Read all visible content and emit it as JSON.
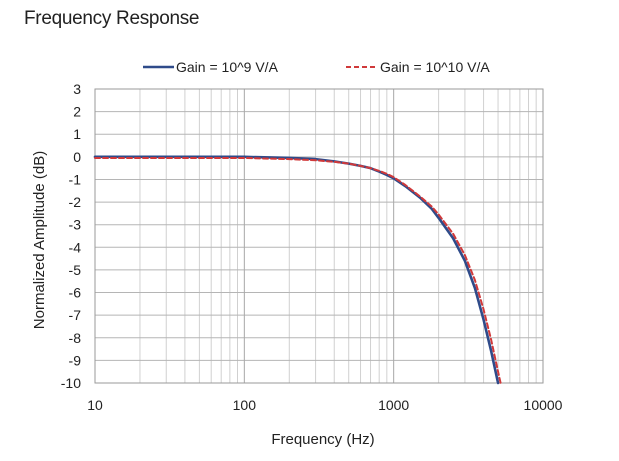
{
  "page": {
    "title": "Frequency Response"
  },
  "chart_data": {
    "type": "line",
    "title": "",
    "xlabel": "Frequency (Hz)",
    "ylabel": "Normalized Amplitude (dB)",
    "xscale": "log",
    "xlim": [
      10,
      10000
    ],
    "ylim": [
      -10,
      3
    ],
    "xticks": [
      10,
      100,
      1000,
      10000
    ],
    "xtick_labels": [
      "10",
      "100",
      "1000",
      "10000"
    ],
    "yticks": [
      3,
      2,
      1,
      0,
      -1,
      -2,
      -3,
      -4,
      -5,
      -6,
      -7,
      -8,
      -9,
      -10
    ],
    "ytick_labels": [
      "3",
      "2",
      "1",
      "0",
      "-1",
      "-2",
      "-3",
      "-4",
      "-5",
      "-6",
      "-7",
      "-8",
      "-9",
      "-10"
    ],
    "grid": true,
    "legend_position": "top",
    "series": [
      {
        "name": "Gain = 10^9 V/A",
        "color": "#2f4b8a",
        "style": "solid",
        "x": [
          10,
          20,
          50,
          100,
          200,
          300,
          400,
          500,
          600,
          700,
          800,
          900,
          1000,
          1200,
          1500,
          1800,
          2000,
          2500,
          3000,
          3500,
          4000,
          4500,
          5000
        ],
        "y": [
          0,
          0,
          0,
          0,
          -0.05,
          -0.1,
          -0.2,
          -0.3,
          -0.4,
          -0.5,
          -0.65,
          -0.8,
          -0.95,
          -1.3,
          -1.8,
          -2.3,
          -2.7,
          -3.6,
          -4.6,
          -5.8,
          -7.2,
          -8.6,
          -10
        ]
      },
      {
        "name": "Gain = 10^10 V/A",
        "color": "#d0393a",
        "style": "dashed",
        "x": [
          10,
          20,
          50,
          100,
          200,
          300,
          400,
          500,
          600,
          700,
          800,
          900,
          1000,
          1200,
          1500,
          1800,
          2000,
          2500,
          3000,
          3500,
          4000,
          4500,
          5000,
          5200
        ],
        "y": [
          -0.05,
          -0.05,
          -0.05,
          -0.05,
          -0.1,
          -0.15,
          -0.22,
          -0.3,
          -0.4,
          -0.5,
          -0.62,
          -0.75,
          -0.9,
          -1.25,
          -1.75,
          -2.2,
          -2.55,
          -3.4,
          -4.35,
          -5.45,
          -6.75,
          -8.1,
          -9.5,
          -10
        ]
      }
    ]
  }
}
